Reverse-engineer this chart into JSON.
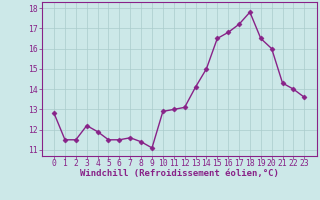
{
  "x": [
    0,
    1,
    2,
    3,
    4,
    5,
    6,
    7,
    8,
    9,
    10,
    11,
    12,
    13,
    14,
    15,
    16,
    17,
    18,
    19,
    20,
    21,
    22,
    23
  ],
  "y": [
    12.8,
    11.5,
    11.5,
    12.2,
    11.9,
    11.5,
    11.5,
    11.6,
    11.4,
    11.1,
    12.9,
    13.0,
    13.1,
    14.1,
    15.0,
    16.5,
    16.8,
    17.2,
    17.8,
    16.5,
    16.0,
    14.3,
    14.0,
    13.6
  ],
  "line_color": "#882288",
  "marker": "D",
  "marker_size": 2.5,
  "bg_color": "#cce8e8",
  "grid_color": "#aacccc",
  "xlabel": "Windchill (Refroidissement éolien,°C)",
  "ylabel": "",
  "ylim": [
    10.7,
    18.3
  ],
  "yticks": [
    11,
    12,
    13,
    14,
    15,
    16,
    17,
    18
  ],
  "xticks": [
    0,
    1,
    2,
    3,
    4,
    5,
    6,
    7,
    8,
    9,
    10,
    11,
    12,
    13,
    14,
    15,
    16,
    17,
    18,
    19,
    20,
    21,
    22,
    23
  ],
  "axis_color": "#882288",
  "tick_color": "#882288",
  "xlabel_color": "#882288",
  "line_width": 1.0,
  "xlabel_fontsize": 6.5,
  "tick_fontsize": 5.8
}
